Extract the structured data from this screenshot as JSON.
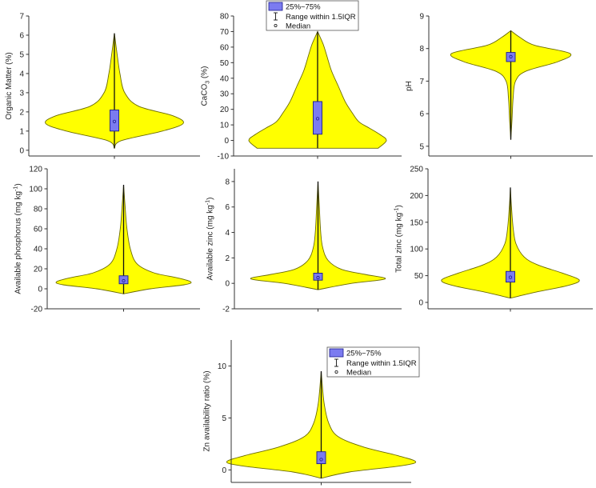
{
  "legend": {
    "box_label": "25%~75%",
    "range_label": "Range within 1.5IQR",
    "median_label": "Median"
  },
  "colors": {
    "violin_fill": "#ffff00",
    "violin_stroke": "#6b6b00",
    "box_fill": "#7b7bf0",
    "box_stroke": "#1a1a8c",
    "axis": "#333333"
  },
  "chart_data": [
    {
      "type": "violin",
      "ylabel": "Organic Matter (%)",
      "ylim": [
        -0.3,
        7
      ],
      "yticks": [
        0,
        1,
        2,
        3,
        4,
        5,
        6,
        7
      ],
      "q1": 1.0,
      "median": 1.5,
      "q3": 2.1,
      "whisker_low": 0.3,
      "whisker_high": 3.3,
      "range": [
        0.1,
        6.1
      ],
      "mode": 1.4,
      "profile": [
        [
          0.1,
          0.0
        ],
        [
          0.5,
          0.1
        ],
        [
          1.0,
          0.7
        ],
        [
          1.4,
          1.0
        ],
        [
          1.8,
          0.85
        ],
        [
          2.3,
          0.35
        ],
        [
          3.0,
          0.15
        ],
        [
          4.0,
          0.08
        ],
        [
          5.0,
          0.04
        ],
        [
          6.1,
          0.0
        ]
      ]
    },
    {
      "type": "violin",
      "ylabel": "CaCO3 (%)",
      "ylim": [
        -10,
        80
      ],
      "yticks": [
        -10,
        0,
        10,
        20,
        30,
        40,
        50,
        60,
        70,
        80
      ],
      "q1": 4,
      "median": 14,
      "q3": 25,
      "whisker_low": 0,
      "whisker_high": 56,
      "range": [
        -5,
        70
      ],
      "mode": 0,
      "profile": [
        [
          -5,
          0.88
        ],
        [
          0,
          1.0
        ],
        [
          4,
          0.9
        ],
        [
          8,
          0.75
        ],
        [
          12,
          0.6
        ],
        [
          18,
          0.5
        ],
        [
          25,
          0.4
        ],
        [
          35,
          0.3
        ],
        [
          45,
          0.2
        ],
        [
          55,
          0.13
        ],
        [
          62,
          0.08
        ],
        [
          70,
          0.0
        ]
      ],
      "legend_position": "top"
    },
    {
      "type": "violin",
      "ylabel": "pH",
      "ylim": [
        4.7,
        9
      ],
      "yticks": [
        5,
        6,
        7,
        8,
        9
      ],
      "q1": 7.6,
      "median": 7.75,
      "q3": 7.88,
      "whisker_low": 7.1,
      "whisker_high": 8.3,
      "range": [
        5.2,
        8.55
      ],
      "mode": 7.85,
      "profile": [
        [
          5.2,
          0.0
        ],
        [
          5.8,
          0.02
        ],
        [
          6.5,
          0.04
        ],
        [
          7.0,
          0.08
        ],
        [
          7.3,
          0.25
        ],
        [
          7.6,
          0.8
        ],
        [
          7.85,
          1.0
        ],
        [
          8.1,
          0.4
        ],
        [
          8.35,
          0.15
        ],
        [
          8.55,
          0.0
        ]
      ]
    },
    {
      "type": "violin",
      "ylabel": "Available phosphorus (mg kg-1)",
      "ylim": [
        -20,
        120
      ],
      "yticks": [
        -20,
        0,
        20,
        40,
        60,
        80,
        100,
        120
      ],
      "q1": 5,
      "median": 8,
      "q3": 13,
      "whisker_low": 0,
      "whisker_high": 27,
      "range": [
        -5,
        104
      ],
      "mode": 7,
      "profile": [
        [
          -5,
          0.0
        ],
        [
          0,
          0.4
        ],
        [
          4,
          0.9
        ],
        [
          7,
          1.0
        ],
        [
          11,
          0.8
        ],
        [
          16,
          0.45
        ],
        [
          25,
          0.2
        ],
        [
          40,
          0.1
        ],
        [
          60,
          0.05
        ],
        [
          80,
          0.025
        ],
        [
          104,
          0.0
        ]
      ]
    },
    {
      "type": "violin",
      "ylabel": "Available zinc (mg kg-1)",
      "ylim": [
        -2,
        9
      ],
      "yticks": [
        -2,
        0,
        2,
        4,
        6,
        8
      ],
      "q1": 0.25,
      "median": 0.45,
      "q3": 0.8,
      "whisker_low": 0.05,
      "whisker_high": 1.7,
      "range": [
        -0.5,
        8.0
      ],
      "mode": 0.35,
      "profile": [
        [
          -0.5,
          0.0
        ],
        [
          0.0,
          0.5
        ],
        [
          0.35,
          1.0
        ],
        [
          0.7,
          0.7
        ],
        [
          1.1,
          0.35
        ],
        [
          1.8,
          0.15
        ],
        [
          2.8,
          0.07
        ],
        [
          4.0,
          0.04
        ],
        [
          6.0,
          0.02
        ],
        [
          8.0,
          0.0
        ]
      ]
    },
    {
      "type": "violin",
      "ylabel": "Total zinc (mg kg-1)",
      "ylim": [
        -12,
        250
      ],
      "yticks": [
        0,
        50,
        100,
        150,
        200,
        250
      ],
      "q1": 38,
      "median": 47,
      "q3": 58,
      "whisker_low": 30,
      "whisker_high": 85,
      "range": [
        8,
        215
      ],
      "mode": 42,
      "profile": [
        [
          8,
          0.0
        ],
        [
          20,
          0.4
        ],
        [
          32,
          0.85
        ],
        [
          42,
          1.0
        ],
        [
          55,
          0.75
        ],
        [
          70,
          0.4
        ],
        [
          85,
          0.2
        ],
        [
          110,
          0.08
        ],
        [
          140,
          0.04
        ],
        [
          180,
          0.015
        ],
        [
          215,
          0.0
        ]
      ]
    },
    {
      "type": "violin",
      "ylabel": "Zn availability ratio (%)",
      "ylim": [
        -1.2,
        12.5
      ],
      "yticks": [
        0,
        5,
        10
      ],
      "q1": 0.6,
      "median": 1.0,
      "q3": 1.75,
      "whisker_low": 0.1,
      "whisker_high": 3.6,
      "range": [
        -0.8,
        9.5
      ],
      "mode": 0.8,
      "profile": [
        [
          -0.8,
          0.0
        ],
        [
          -0.2,
          0.3
        ],
        [
          0.4,
          0.85
        ],
        [
          0.8,
          1.0
        ],
        [
          1.4,
          0.8
        ],
        [
          2.2,
          0.45
        ],
        [
          3.2,
          0.18
        ],
        [
          4.5,
          0.08
        ],
        [
          6.5,
          0.03
        ],
        [
          9.5,
          0.0
        ]
      ],
      "legend_position": "top"
    }
  ]
}
